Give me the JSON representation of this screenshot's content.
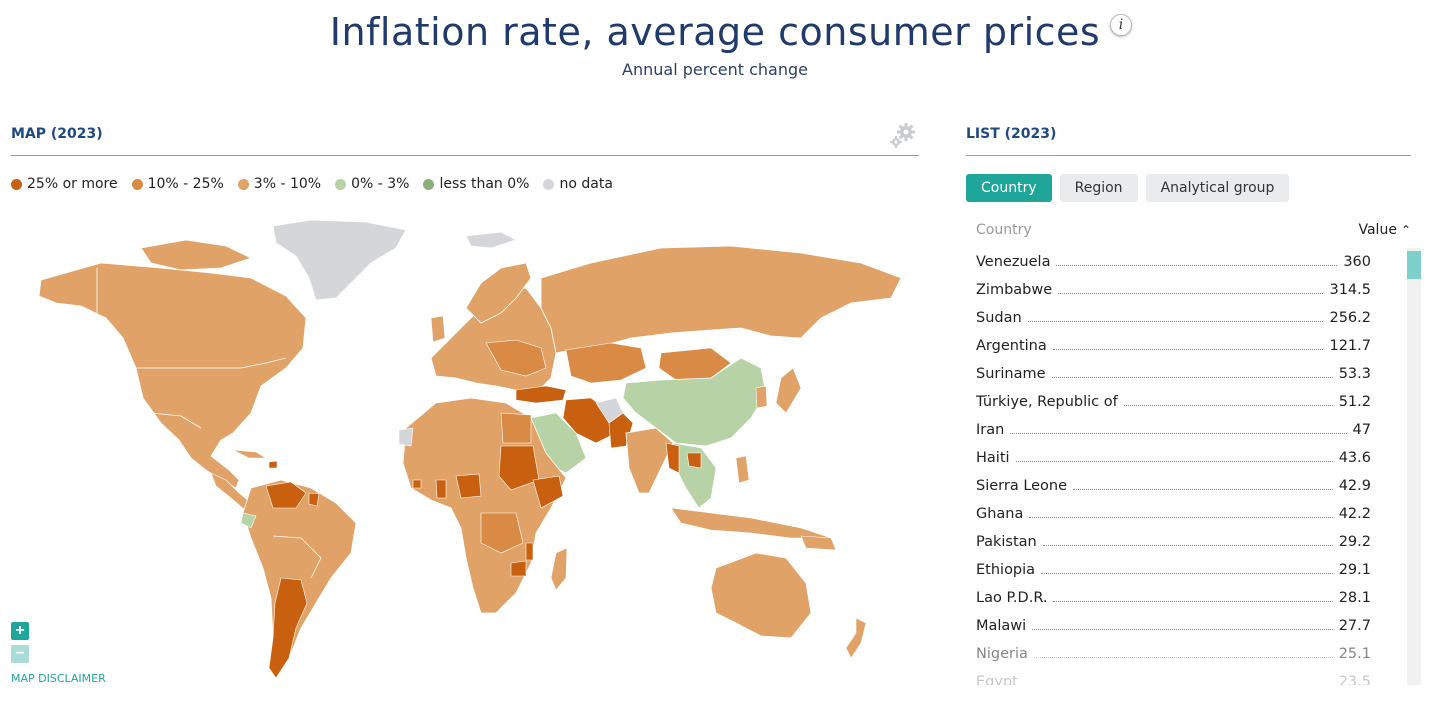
{
  "header": {
    "title": "Inflation rate, average consumer prices",
    "info_label": "i",
    "subtitle": "Annual percent change"
  },
  "map_panel": {
    "title": "MAP (2023)",
    "settings_icon": "gear-icon",
    "legend": [
      {
        "label": "25% or more",
        "color": "#c8600f"
      },
      {
        "label": "10% - 25%",
        "color": "#d98a45"
      },
      {
        "label": "3% - 10%",
        "color": "#e0a266"
      },
      {
        "label": "0% - 3%",
        "color": "#b7d3a6"
      },
      {
        "label": "less than 0%",
        "color": "#8ab07a"
      },
      {
        "label": "no data",
        "color": "#d4d6d9"
      }
    ],
    "zoom_in_label": "+",
    "zoom_out_label": "−",
    "disclaimer": "MAP DISCLAIMER"
  },
  "list_panel": {
    "title": "LIST (2023)",
    "tabs": [
      {
        "label": "Country",
        "active": true
      },
      {
        "label": "Region",
        "active": false
      },
      {
        "label": "Analytical group",
        "active": false
      }
    ],
    "col_country": "Country",
    "col_value": "Value",
    "rows": [
      {
        "country": "Venezuela",
        "value": "360"
      },
      {
        "country": "Zimbabwe",
        "value": "314.5"
      },
      {
        "country": "Sudan",
        "value": "256.2"
      },
      {
        "country": "Argentina",
        "value": "121.7"
      },
      {
        "country": "Suriname",
        "value": "53.3"
      },
      {
        "country": "Türkiye, Republic of",
        "value": "51.2"
      },
      {
        "country": "Iran",
        "value": "47"
      },
      {
        "country": "Haiti",
        "value": "43.6"
      },
      {
        "country": "Sierra Leone",
        "value": "42.9"
      },
      {
        "country": "Ghana",
        "value": "42.2"
      },
      {
        "country": "Pakistan",
        "value": "29.2"
      },
      {
        "country": "Ethiopia",
        "value": "29.1"
      },
      {
        "country": "Lao P.D.R.",
        "value": "28.1"
      },
      {
        "country": "Malawi",
        "value": "27.7"
      },
      {
        "country": "Nigeria",
        "value": "25.1"
      },
      {
        "country": "Egypt",
        "value": "23.5"
      }
    ]
  },
  "colors": {
    "accent": "#1fa69b",
    "title": "#1f3a6b",
    "panel_title": "#1f4a7f"
  }
}
